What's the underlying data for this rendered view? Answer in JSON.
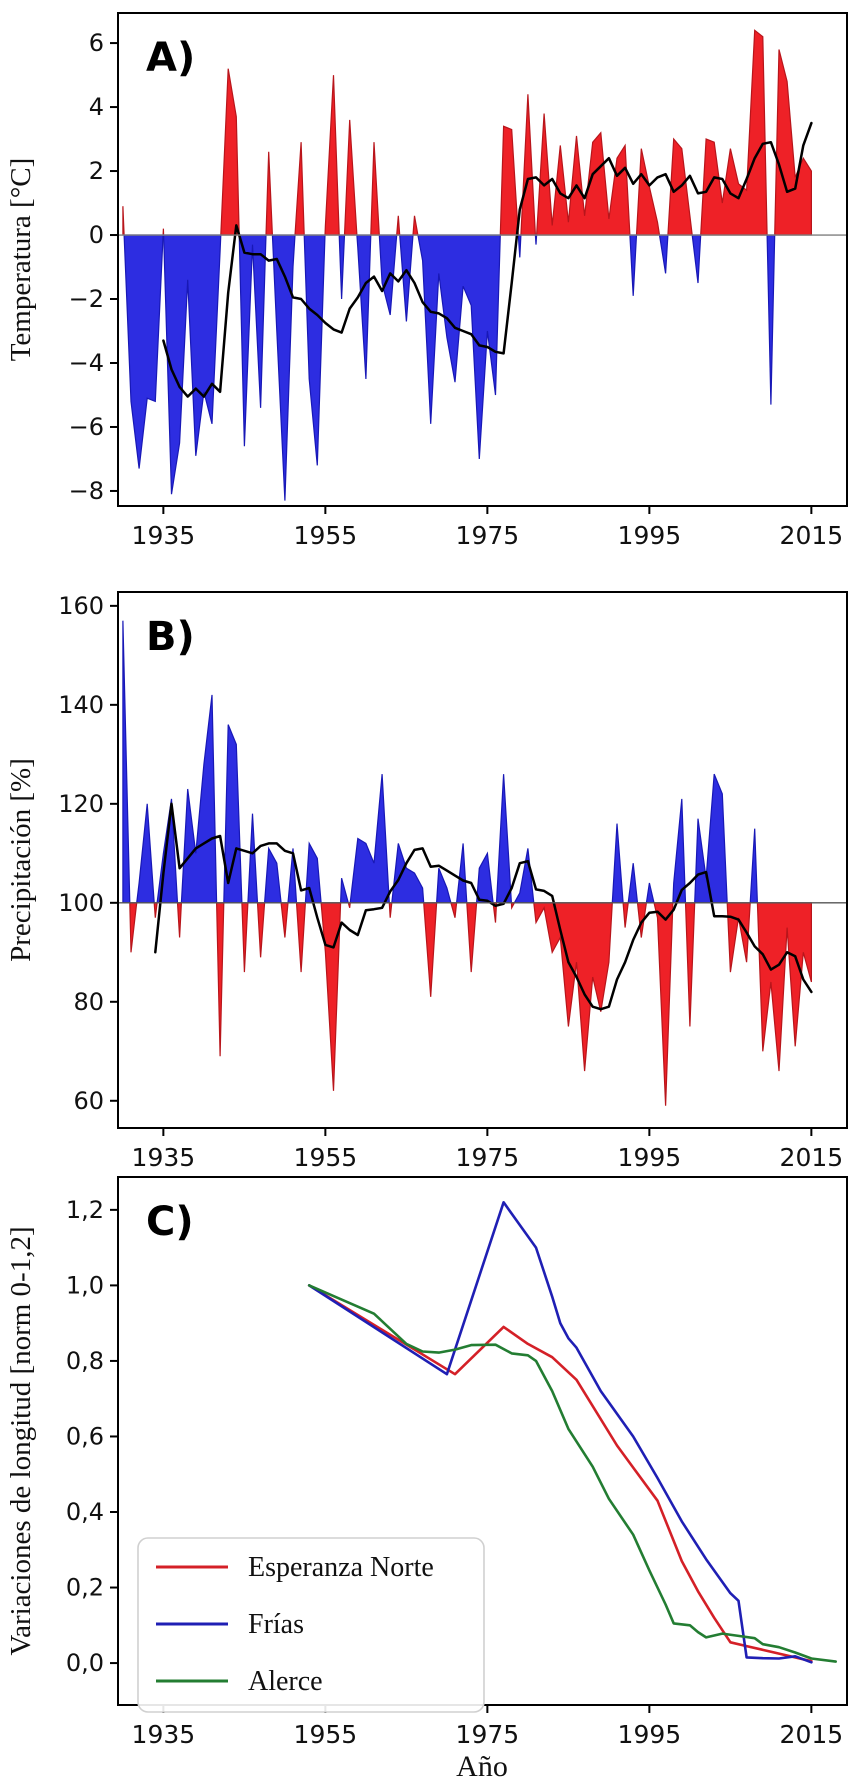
{
  "figure": {
    "xlabel": "Año",
    "xlim": [
      1929.4,
      2019.4
    ],
    "xticks": [
      1935,
      1955,
      1975,
      1995,
      2015
    ],
    "xtick_labels": [
      "1935",
      "1955",
      "1975",
      "1995",
      "2015"
    ],
    "background": "#ffffff",
    "spine_color": "#000000"
  },
  "chart_data": [
    {
      "id": "A",
      "type": "area+line",
      "title": "A)",
      "ylabel": "Temperatura [°C]",
      "ylim": [
        -8.47,
        6.94
      ],
      "yticks": [
        6,
        4,
        2,
        0,
        -2,
        -4,
        -6,
        -8
      ],
      "ytick_labels": [
        "6",
        "4",
        "2",
        "0",
        "−2",
        "−4",
        "−6",
        "−8"
      ],
      "baseline": 0,
      "baseline_color": "#7f7f7f",
      "positive_color": "#ee2127",
      "negative_color": "#2d2de1",
      "positive_edge": "#b8151b",
      "negative_edge": "#1818b6",
      "smooth_color": "#000000",
      "anomaly_start_year": 1930,
      "anomaly": [
        0.9,
        -5.2,
        -7.3,
        -5.1,
        -5.2,
        0.2,
        -8.1,
        -6.5,
        -1.4,
        -6.9,
        -4.9,
        -5.9,
        -0.5,
        5.2,
        3.7,
        -6.6,
        -0.3,
        -5.4,
        2.6,
        -3.0,
        -8.3,
        -1.0,
        2.9,
        -4.5,
        -7.2,
        0.3,
        5.0,
        -2.0,
        3.6,
        -0.4,
        -4.5,
        2.9,
        -1.5,
        -2.5,
        0.6,
        -2.7,
        0.6,
        -0.8,
        -5.9,
        -1.2,
        -3.2,
        -4.6,
        -1.6,
        -2.2,
        -7.0,
        -3.0,
        -5.0,
        3.4,
        3.3,
        -0.7,
        4.4,
        -0.3,
        3.8,
        0.3,
        2.8,
        0.4,
        3.1,
        0.6,
        2.9,
        3.2,
        0.5,
        2.4,
        2.8,
        -1.9,
        2.7,
        1.5,
        0.4,
        -1.2,
        3.0,
        2.7,
        0.6,
        -1.5,
        3.0,
        2.9,
        1.0,
        2.7,
        1.6,
        1.4,
        6.4,
        6.2,
        -5.3,
        5.8,
        4.8,
        1.8,
        2.4,
        2.0
      ],
      "smooth_start_year": 1935,
      "smooth": [
        -3.3,
        -4.2,
        -4.75,
        -5.05,
        -4.8,
        -5.05,
        -4.65,
        -4.9,
        -1.8,
        0.3,
        -0.55,
        -0.6,
        -0.6,
        -0.8,
        -0.75,
        -1.3,
        -1.95,
        -2.0,
        -2.3,
        -2.5,
        -2.75,
        -2.95,
        -3.05,
        -2.3,
        -1.95,
        -1.5,
        -1.3,
        -1.75,
        -1.2,
        -1.45,
        -1.1,
        -1.5,
        -2.1,
        -2.4,
        -2.45,
        -2.6,
        -2.9,
        -3.0,
        -3.1,
        -3.45,
        -3.5,
        -3.65,
        -3.7,
        -1.5,
        0.8,
        1.75,
        1.8,
        1.55,
        1.75,
        1.3,
        1.15,
        1.55,
        1.15,
        1.9,
        2.15,
        2.4,
        1.85,
        2.1,
        1.6,
        1.9,
        1.55,
        1.8,
        1.9,
        1.35,
        1.55,
        1.85,
        1.3,
        1.35,
        1.8,
        1.75,
        1.3,
        1.15,
        1.75,
        2.4,
        2.85,
        2.9,
        2.2,
        1.35,
        1.45,
        2.8,
        3.5
      ]
    },
    {
      "id": "B",
      "type": "area+line",
      "title": "B)",
      "ylabel": "Precipitación [%]",
      "ylim": [
        54.5,
        162.8
      ],
      "yticks": [
        160,
        140,
        120,
        100,
        80,
        60
      ],
      "ytick_labels": [
        "160",
        "140",
        "120",
        "100",
        "80",
        "60"
      ],
      "baseline": 100,
      "baseline_color": "#555555",
      "positive_color": "#2d2de1",
      "negative_color": "#ee2127",
      "positive_edge": "#1818b6",
      "negative_edge": "#b8151b",
      "smooth_color": "#000000",
      "anomaly_start_year": 1930,
      "anomaly": [
        157,
        90,
        104,
        120,
        97,
        110,
        121,
        93,
        123,
        110,
        128,
        142,
        69,
        136,
        132,
        86,
        118,
        89,
        111,
        108,
        93,
        111,
        86,
        112,
        109,
        90,
        62,
        105,
        99,
        113,
        112,
        108,
        126,
        97,
        112,
        107,
        106,
        103,
        81,
        107,
        103,
        97,
        112,
        86,
        107,
        110,
        96,
        126,
        99,
        102,
        111,
        96,
        99,
        90,
        93,
        75,
        88,
        66,
        85,
        78,
        88,
        116,
        95,
        108,
        93,
        104,
        97,
        59,
        104,
        121,
        75,
        117,
        105,
        126,
        122,
        86,
        97,
        88,
        115,
        70,
        84,
        66,
        95,
        71,
        90,
        84
      ],
      "smooth_start_year": 1934,
      "smooth": [
        90,
        106,
        120,
        107,
        109,
        111,
        112,
        113,
        113.5,
        104,
        111,
        110.5,
        110,
        111.5,
        112,
        112,
        110.5,
        110,
        102.5,
        103,
        97,
        91.5,
        91,
        96,
        94.5,
        93.5,
        98.5,
        98.7,
        99,
        102.3,
        104.6,
        108,
        110.7,
        111,
        107.3,
        107.5,
        106.5,
        105.5,
        104.5,
        104,
        100.6,
        100.4,
        99.4,
        99.8,
        103,
        108,
        108.4,
        102.7,
        102.4,
        101.4,
        94.5,
        88,
        85,
        81.5,
        79,
        78.5,
        79,
        84.5,
        88,
        92.5,
        96,
        98,
        98.2,
        96.6,
        98.6,
        102.6,
        104,
        105.7,
        106.2,
        97.3,
        97.3,
        97.2,
        96.6,
        94,
        91.2,
        89.6,
        86.5,
        87.5,
        90,
        89.2,
        84.5,
        82
      ]
    },
    {
      "id": "C",
      "type": "line",
      "title": "C)",
      "ylabel": "Variaciones de longitud [norm 0-1,2]",
      "ylim": [
        -0.111,
        1.287
      ],
      "yticks": [
        1.2,
        1.0,
        0.8,
        0.6,
        0.4,
        0.2,
        0.0
      ],
      "ytick_labels": [
        "1,2",
        "1,0",
        "0,8",
        "0,6",
        "0,4",
        "0,2",
        "0,0"
      ],
      "legend_position": "lower left",
      "series": [
        {
          "name": "Esperanza Norte",
          "color": "#d42027",
          "points": [
            [
              1953,
              1.0
            ],
            [
              1971,
              0.765
            ],
            [
              1977,
              0.89
            ],
            [
              1980,
              0.845
            ],
            [
              1983,
              0.81
            ],
            [
              1986,
              0.75
            ],
            [
              1991,
              0.576
            ],
            [
              1996,
              0.43
            ],
            [
              1999,
              0.27
            ],
            [
              2001,
              0.19
            ],
            [
              2003,
              0.12
            ],
            [
              2005,
              0.055
            ],
            [
              2007,
              0.045
            ],
            [
              2011,
              0.025
            ],
            [
              2015,
              0.005
            ]
          ]
        },
        {
          "name": "Frías",
          "color": "#1f1fb4",
          "points": [
            [
              1953,
              1.0
            ],
            [
              1970,
              0.765
            ],
            [
              1977,
              1.22
            ],
            [
              1979,
              1.16
            ],
            [
              1981,
              1.1
            ],
            [
              1983,
              0.97
            ],
            [
              1984,
              0.9
            ],
            [
              1985,
              0.86
            ],
            [
              1986,
              0.835
            ],
            [
              1989,
              0.72
            ],
            [
              1993,
              0.6
            ],
            [
              1996,
              0.49
            ],
            [
              1999,
              0.375
            ],
            [
              2002,
              0.275
            ],
            [
              2005,
              0.185
            ],
            [
              2006,
              0.165
            ],
            [
              2007,
              0.015
            ],
            [
              2009,
              0.013
            ],
            [
              2011,
              0.012
            ],
            [
              2013,
              0.018
            ],
            [
              2015,
              0.002
            ]
          ]
        },
        {
          "name": "Alerce",
          "color": "#237d32",
          "points": [
            [
              1953,
              1.0
            ],
            [
              1961,
              0.925
            ],
            [
              1965,
              0.845
            ],
            [
              1967,
              0.825
            ],
            [
              1969,
              0.822
            ],
            [
              1971,
              0.83
            ],
            [
              1973,
              0.842
            ],
            [
              1976,
              0.843
            ],
            [
              1978,
              0.82
            ],
            [
              1980,
              0.815
            ],
            [
              1981,
              0.8
            ],
            [
              1983,
              0.72
            ],
            [
              1985,
              0.62
            ],
            [
              1988,
              0.52
            ],
            [
              1990,
              0.435
            ],
            [
              1993,
              0.34
            ],
            [
              1995,
              0.245
            ],
            [
              1997,
              0.155
            ],
            [
              1998,
              0.105
            ],
            [
              2000,
              0.1
            ],
            [
              2001,
              0.082
            ],
            [
              2002,
              0.068
            ],
            [
              2004,
              0.078
            ],
            [
              2006,
              0.072
            ],
            [
              2008,
              0.066
            ],
            [
              2009,
              0.05
            ],
            [
              2011,
              0.042
            ],
            [
              2013,
              0.028
            ],
            [
              2015,
              0.012
            ],
            [
              2018,
              0.004
            ]
          ]
        }
      ]
    }
  ]
}
